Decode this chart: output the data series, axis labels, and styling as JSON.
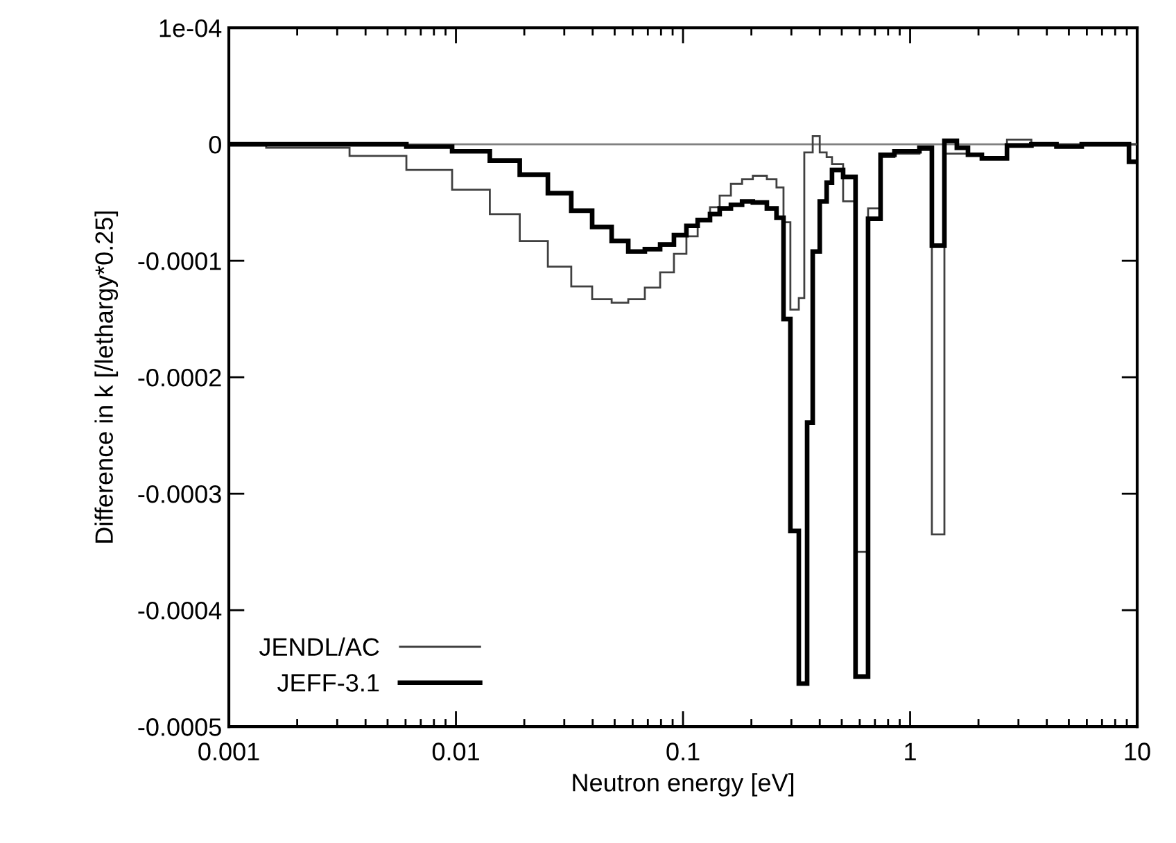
{
  "chart_data": {
    "type": "step",
    "xlabel": "Neutron energy [eV]",
    "ylabel": "Difference in k [/lethargy*0.25]",
    "log": "x",
    "xlim": [
      0.001,
      10
    ],
    "xticks": [
      0.001,
      0.01,
      0.1,
      1,
      10
    ],
    "ylim": [
      -0.0005,
      0.0001
    ],
    "yticks": [
      {
        "value": 0.0001,
        "label": "1e-04"
      },
      {
        "value": 0,
        "label": "0"
      },
      {
        "value": -0.0001,
        "label": "-0.0001"
      },
      {
        "value": -0.0002,
        "label": "-0.0002"
      },
      {
        "value": -0.0003,
        "label": "-0.0003"
      },
      {
        "value": -0.0004,
        "label": "-0.0004"
      },
      {
        "value": -0.0005,
        "label": "-0.0005"
      }
    ],
    "grid": false,
    "legend": "bottom left",
    "ref_lines": [
      {
        "axis": "y",
        "value": 0,
        "color": "#808080"
      }
    ],
    "series": [
      {
        "name": "JENDL/AC",
        "color": "#404040",
        "x": [
          0.001,
          0.00146,
          0.0034,
          0.00605,
          0.00962,
          0.0141,
          0.0191,
          0.0254,
          0.0322,
          0.0398,
          0.0485,
          0.0574,
          0.0679,
          0.0793,
          0.0912,
          0.1035,
          0.116,
          0.1315,
          0.145,
          0.1625,
          0.182,
          0.203,
          0.234,
          0.258,
          0.277,
          0.297,
          0.3235,
          0.342,
          0.3725,
          0.4,
          0.429,
          0.453,
          0.507,
          0.575,
          0.653,
          0.741,
          0.853,
          1.099,
          1.247,
          1.416,
          1.606,
          1.798,
          2.07,
          2.67,
          3.42,
          4.41,
          10
        ],
        "values": [
          0,
          -3e-06,
          -1e-05,
          -2.2e-05,
          -3.9e-05,
          -6e-05,
          -8.3e-05,
          -0.000105,
          -0.000122,
          -0.000133,
          -0.000136,
          -0.000133,
          -0.000123,
          -0.00011,
          -9.4e-05,
          -7.9e-05,
          -6.5e-05,
          -5.4e-05,
          -4.4e-05,
          -3.4e-05,
          -3e-05,
          -2.7e-05,
          -3e-05,
          -3.7e-05,
          -6.7e-05,
          -0.000142,
          -0.000132,
          -7e-06,
          7e-06,
          -7e-06,
          -1.1e-05,
          -1.7e-05,
          -4.9e-05,
          -0.00035,
          -5.5e-05,
          -1.1e-05,
          -8e-06,
          -5e-06,
          -0.000335,
          -8e-06,
          -8e-06,
          -9e-06,
          -1.1e-05,
          4e-06,
          0,
          0,
          0
        ]
      },
      {
        "name": "JEFF-3.1",
        "color": "#000000",
        "x": [
          0.001,
          0.00605,
          0.00962,
          0.0141,
          0.0191,
          0.0254,
          0.0322,
          0.0398,
          0.0485,
          0.0574,
          0.0679,
          0.0793,
          0.0912,
          0.1035,
          0.116,
          0.1315,
          0.145,
          0.1625,
          0.182,
          0.203,
          0.234,
          0.258,
          0.277,
          0.297,
          0.3235,
          0.352,
          0.3725,
          0.4,
          0.429,
          0.453,
          0.507,
          0.575,
          0.653,
          0.741,
          0.853,
          1.099,
          1.247,
          1.416,
          1.606,
          1.798,
          2.07,
          2.67,
          3.42,
          4.41,
          5.7,
          9.2,
          10
        ],
        "values": [
          0,
          -2e-06,
          -6e-06,
          -1.4e-05,
          -2.6e-05,
          -4.2e-05,
          -5.7e-05,
          -7.1e-05,
          -8.3e-05,
          -9.2e-05,
          -9e-05,
          -8.6e-05,
          -7.8e-05,
          -7e-05,
          -6.5e-05,
          -6e-05,
          -5.5e-05,
          -5.2e-05,
          -4.9e-05,
          -5e-05,
          -5.5e-05,
          -6.3e-05,
          -0.00015,
          -0.000332,
          -0.000463,
          -0.000239,
          -9.2e-05,
          -4.9e-05,
          -3.3e-05,
          -2.2e-05,
          -2.8e-05,
          -0.000457,
          -6.4e-05,
          -9e-06,
          -6e-06,
          -3e-06,
          -8.7e-05,
          3e-06,
          -3e-06,
          -9e-06,
          -1.2e-05,
          -1e-06,
          0,
          -2e-06,
          0,
          -1.5e-05,
          -1.5e-05
        ]
      }
    ]
  }
}
